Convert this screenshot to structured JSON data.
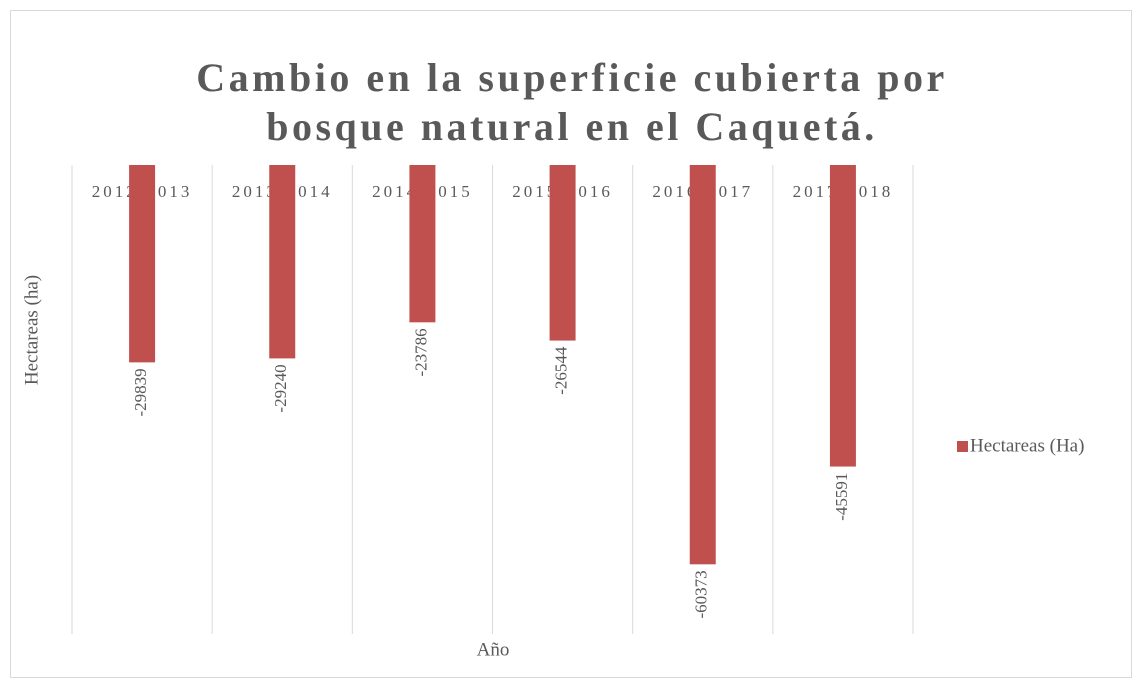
{
  "chart_data": {
    "type": "bar",
    "title": [
      "Cambio en la superficie cubierta por",
      "bosque natural en el Caquetá."
    ],
    "x_label": "Año",
    "y_label": "Hectareas (ha)",
    "categories": [
      "2012-2013",
      "2013-2014",
      "2014-2015",
      "2015-2016",
      "2016-2017",
      "2017-2018"
    ],
    "series": [
      {
        "name": "Hectareas (Ha)",
        "color": "#c0504d",
        "values": [
          -29839,
          -29240,
          -23786,
          -26544,
          -60373,
          -45591
        ]
      }
    ],
    "ylim": [
      -70000,
      0
    ],
    "grid": "vertical",
    "legend": "right",
    "data_labels": true
  }
}
